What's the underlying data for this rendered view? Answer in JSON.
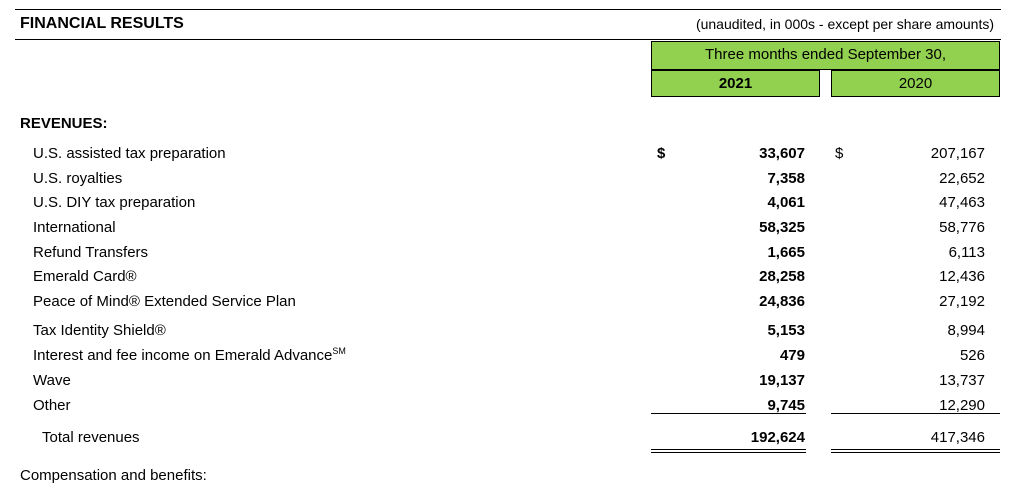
{
  "header": {
    "title": "FINANCIAL RESULTS",
    "note": "(unaudited, in 000s - except per share amounts)",
    "period": "Three months ended September 30,",
    "col_2021": "2021",
    "col_2020": "2020"
  },
  "section_title": "REVENUES:",
  "currency_symbol": "$",
  "rows": [
    {
      "label": "U.S. assisted tax preparation",
      "sup": "",
      "v2021": "33,607",
      "v2020": "207,167"
    },
    {
      "label": "U.S. royalties",
      "sup": "",
      "v2021": "7,358",
      "v2020": "22,652"
    },
    {
      "label": "U.S. DIY tax preparation",
      "sup": "",
      "v2021": "4,061",
      "v2020": "47,463"
    },
    {
      "label": "International",
      "sup": "",
      "v2021": "58,325",
      "v2020": "58,776"
    },
    {
      "label": "Refund Transfers",
      "sup": "",
      "v2021": "1,665",
      "v2020": "6,113"
    },
    {
      "label": "Emerald Card®",
      "sup": "",
      "v2021": "28,258",
      "v2020": "12,436"
    },
    {
      "label": "Peace of Mind® Extended Service Plan",
      "sup": "",
      "v2021": "24,836",
      "v2020": "27,192"
    },
    {
      "label": "Tax Identity Shield®",
      "sup": "",
      "v2021": "5,153",
      "v2020": "8,994"
    },
    {
      "label": "Interest and fee income on Emerald Advance",
      "sup": "SM",
      "v2021": "479",
      "v2020": "526"
    },
    {
      "label": "Wave",
      "sup": "",
      "v2021": "19,137",
      "v2020": "13,737"
    },
    {
      "label": "Other",
      "sup": "",
      "v2021": "9,745",
      "v2020": "12,290"
    }
  ],
  "total": {
    "label": "Total revenues",
    "v2021": "192,624",
    "v2020": "417,346"
  },
  "footer_text": "Compensation and benefits:"
}
